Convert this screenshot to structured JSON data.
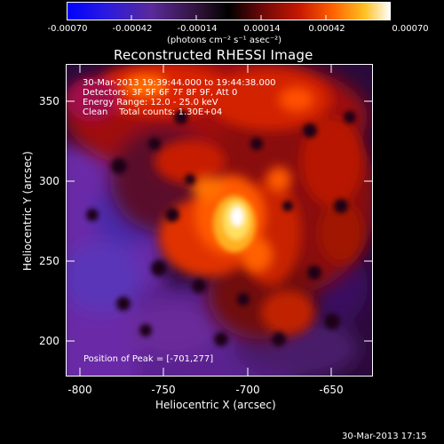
{
  "colorbar": {
    "ticks": [
      "-0.00070",
      "-0.00042",
      "-0.00014",
      "0.00014",
      "0.00042",
      "0.00070"
    ],
    "units_label": "(photons cm⁻² s⁻¹ asec⁻²)",
    "colors": [
      "#0000ff",
      "#3a1aa8",
      "#5a2a8c",
      "#3a1a3a",
      "#000000",
      "#6a0a0a",
      "#c01a00",
      "#ff5a00",
      "#ffb000",
      "#ffee60",
      "#ffffff"
    ]
  },
  "image": {
    "title": "Reconstructed RHESSI Image",
    "info_lines": [
      "30-Mar-2013 19:39:44.000 to 19:44:38.000",
      "Detectors: 3F 5F 6F 7F 8F 9F, Att 0",
      "Energy Range: 12.0 - 25.0 keV",
      "Clean    Total counts: 1.30E+04"
    ],
    "peak_text": "Position of Peak = [-701,277]",
    "x_axis_label": "Heliocentric X (arcsec)",
    "y_axis_label": "Heliocentric Y (arcsec)",
    "x_ticks": [
      "-800",
      "-750",
      "-700",
      "-650"
    ],
    "y_ticks": [
      "350",
      "300",
      "250",
      "200"
    ]
  },
  "footer": {
    "timestamp": "30-Mar-2013 17:15"
  }
}
